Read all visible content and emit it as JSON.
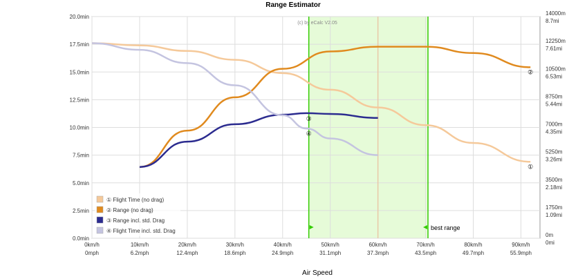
{
  "chart_data": {
    "type": "line",
    "title": "Range Estimator",
    "watermark": "(c) by eCalc  V2.05",
    "xlabel": "Air Speed",
    "x_ticks_kmh": [
      "0km/h",
      "10km/h",
      "20km/h",
      "30km/h",
      "40km/h",
      "50km/h",
      "60km/h",
      "70km/h",
      "80km/h",
      "90km/h"
    ],
    "x_ticks_mph": [
      "0mph",
      "6.2mph",
      "12.4mph",
      "18.6mph",
      "24.9mph",
      "31.1mph",
      "37.3mph",
      "43.5mph",
      "49.7mph",
      "55.9mph"
    ],
    "xlim": [
      0,
      94
    ],
    "y_left_ticks": [
      "0.0min",
      "2.5min",
      "5.0min",
      "7.5min",
      "10.0min",
      "12.5min",
      "15.0min",
      "17.5min",
      "20.0min"
    ],
    "ylim_left": [
      0,
      20
    ],
    "y_right_ticks_m": [
      "0m",
      "1750m",
      "3500m",
      "5250m",
      "7000m",
      "8750m",
      "10500m",
      "12250m",
      "14000m"
    ],
    "y_right_ticks_mi": [
      "0mi",
      "1.09mi",
      "2.18mi",
      "3.26mi",
      "4.35mi",
      "5.44mi",
      "6.53mi",
      "7.61mi",
      "8.7mi"
    ],
    "ylim_right": [
      0,
      14000
    ],
    "best_range_label": "best range",
    "best_range_band": [
      45.5,
      70.5
    ],
    "grid": true,
    "legend_position": "bottom-left",
    "series": [
      {
        "name": "Flight Time (no drag)",
        "marker": "①",
        "color": "#f5c99a",
        "axis": "left",
        "x": [
          0,
          10,
          20,
          30,
          40,
          50,
          60,
          70,
          80,
          92
        ],
        "y": [
          17.6,
          17.4,
          16.9,
          16.1,
          14.9,
          13.4,
          11.8,
          10.2,
          8.6,
          6.9
        ]
      },
      {
        "name": "Range (no drag)",
        "marker": "②",
        "color": "#e08a1e",
        "axis": "right",
        "x": [
          10,
          20,
          30,
          40,
          50,
          60,
          70,
          80,
          92
        ],
        "y": [
          4500,
          6800,
          8900,
          10700,
          11800,
          12100,
          12100,
          11700,
          10800
        ]
      },
      {
        "name": "Range incl. std. Drag",
        "marker": "③",
        "color": "#2b2b8f",
        "axis": "right",
        "x": [
          10,
          20,
          30,
          40,
          45,
          50,
          60
        ],
        "y": [
          4500,
          6100,
          7200,
          7800,
          7900,
          7850,
          7600
        ]
      },
      {
        "name": "Flight Time incl. std. Drag",
        "marker": "④",
        "color": "#c4c4e0",
        "axis": "left",
        "x": [
          0,
          10,
          20,
          30,
          40,
          45,
          50,
          60
        ],
        "y": [
          17.6,
          17.0,
          15.8,
          13.8,
          11.1,
          9.9,
          9.0,
          7.5
        ]
      }
    ]
  },
  "colors": {
    "grid": "#dddddd",
    "band": "#e6fbd8",
    "band_line": "#33cc00",
    "optimal_line": "#e9c9a8",
    "axis": "#999999"
  }
}
